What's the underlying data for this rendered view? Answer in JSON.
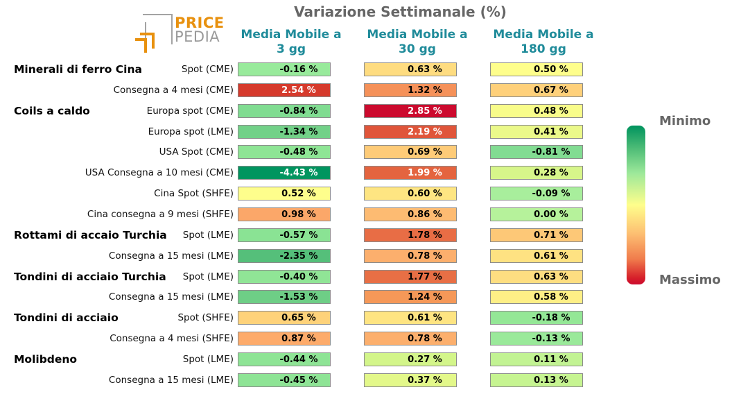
{
  "chart_data": {
    "type": "heatmap",
    "title": "Variazione Settimanale (%)",
    "columns": [
      "Media Mobile a\n3 gg",
      "Media Mobile a\n30 gg",
      "Media Mobile a\n180 gg"
    ],
    "colorbar": {
      "top_label": "Minimo",
      "bottom_label": "Massimo"
    },
    "colors": {
      "min": "#00935e",
      "mid": "#fefe8c",
      "max": "#cc0a2e"
    },
    "rows": [
      {
        "group": "Minerali di ferro Cina",
        "label": "Spot (CME)",
        "values": [
          "-0.16 %",
          "0.63 %",
          "0.50 %"
        ],
        "colors": [
          "#98ea9b",
          "#fedc80",
          "#fefe8c"
        ]
      },
      {
        "group": "",
        "label": "Consegna a 4 mesi (CME)",
        "values": [
          "2.54 %",
          "1.32 %",
          "0.67 %"
        ],
        "colors": [
          "#d63a2c",
          "#f59159",
          "#fed07a"
        ]
      },
      {
        "group": "Coils a caldo",
        "label": "Europa spot (CME)",
        "values": [
          "-0.84 %",
          "2.85 %",
          "0.48 %"
        ],
        "colors": [
          "#80dc91",
          "#cc0a2e",
          "#f8fc8a"
        ]
      },
      {
        "group": "",
        "label": "Europa spot (LME)",
        "values": [
          "-1.34 %",
          "2.19 %",
          "0.41 %"
        ],
        "colors": [
          "#72d188",
          "#e0553a",
          "#ebf98a"
        ]
      },
      {
        "group": "",
        "label": "USA Spot (CME)",
        "values": [
          "-0.48 %",
          "0.69 %",
          "-0.81 %"
        ],
        "colors": [
          "#8ee595",
          "#fecb78",
          "#82dc92"
        ]
      },
      {
        "group": "",
        "label": "USA Consegna a 10 mesi (CME)",
        "values": [
          "-4.43 %",
          "1.99 %",
          "0.28 %"
        ],
        "colors": [
          "#00955f",
          "#e4643f",
          "#d7f68a"
        ]
      },
      {
        "group": "",
        "label": "Cina Spot (SHFE)",
        "values": [
          "0.52 %",
          "0.60 %",
          "-0.09 %"
        ],
        "colors": [
          "#fefe8c",
          "#fee582",
          "#a8ee9c"
        ]
      },
      {
        "group": "",
        "label": "Cina consegna a 9 mesi (SHFE)",
        "values": [
          "0.98 %",
          "0.86 %",
          "0.00 %"
        ],
        "colors": [
          "#fba769",
          "#fdbb72",
          "#b6f29b"
        ]
      },
      {
        "group": "Rottami di accaio Turchia",
        "label": "Spot (LME)",
        "values": [
          "-0.57 %",
          "1.78 %",
          "0.71 %"
        ],
        "colors": [
          "#8ae394",
          "#e86d45",
          "#fdc877"
        ]
      },
      {
        "group": "",
        "label": "Consegna a 15 mesi (LME)",
        "values": [
          "-2.35 %",
          "0.78 %",
          "0.61 %"
        ],
        "colors": [
          "#55bf7a",
          "#fcaf6d",
          "#fee282"
        ]
      },
      {
        "group": "Tondini di acciaio Turchia",
        "label": "Spot (LME)",
        "values": [
          "-0.40 %",
          "1.77 %",
          "0.63 %"
        ],
        "colors": [
          "#90e596",
          "#e86f45",
          "#fede81"
        ]
      },
      {
        "group": "",
        "label": "Consegna a 15 mesi (LME)",
        "values": [
          "-1.53 %",
          "1.24 %",
          "0.58 %"
        ],
        "colors": [
          "#6ece86",
          "#f59858",
          "#feef86"
        ]
      },
      {
        "group": "Tondini di acciaio",
        "label": "Spot (SHFE)",
        "values": [
          "0.65 %",
          "0.61 %",
          "-0.18 %"
        ],
        "colors": [
          "#fed27a",
          "#fee482",
          "#94e796"
        ]
      },
      {
        "group": "",
        "label": "Consegna a 4 mesi (SHFE)",
        "values": [
          "0.87 %",
          "0.78 %",
          "-0.13 %"
        ],
        "colors": [
          "#fdab6b",
          "#fcaf6d",
          "#9ae99a"
        ]
      },
      {
        "group": "Molibdeno",
        "label": "Spot (LME)",
        "values": [
          "-0.44 %",
          "0.27 %",
          "0.11 %"
        ],
        "colors": [
          "#8ee495",
          "#d3f58a",
          "#c2f393"
        ]
      },
      {
        "group": "",
        "label": "Consegna a 15 mesi (LME)",
        "values": [
          "-0.45 %",
          "0.37 %",
          "0.13 %"
        ],
        "colors": [
          "#8ee495",
          "#e3f88a",
          "#c6f491"
        ]
      }
    ]
  },
  "logo": {
    "line1": "PRICE",
    "line2": "PEDIA"
  }
}
